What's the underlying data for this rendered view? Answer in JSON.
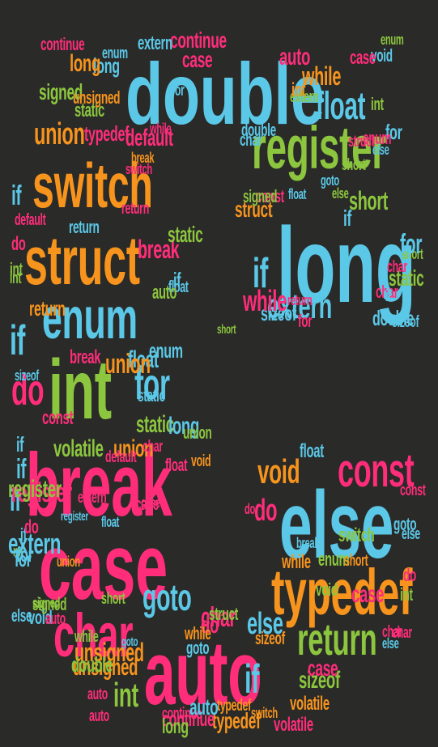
{
  "colors": {
    "background": "#2a2a28",
    "cyan": "#5bc8e8",
    "pink": "#ff2d7a",
    "orange": "#f7941d",
    "green": "#8cc63f"
  },
  "words": [
    {
      "text": "double",
      "color": "cyan"
    },
    {
      "text": "register",
      "color": "green"
    },
    {
      "text": "long",
      "color": "cyan"
    },
    {
      "text": "float",
      "color": "cyan"
    },
    {
      "text": "extern",
      "color": "cyan"
    },
    {
      "text": "short",
      "color": "green"
    },
    {
      "text": "struct",
      "color": "orange"
    },
    {
      "text": "if",
      "color": "cyan"
    },
    {
      "text": "double",
      "color": "cyan"
    },
    {
      "text": "switch",
      "color": "orange"
    },
    {
      "text": "struct",
      "color": "orange"
    },
    {
      "text": "enum",
      "color": "cyan"
    },
    {
      "text": "int",
      "color": "green"
    },
    {
      "text": "break",
      "color": "pink"
    },
    {
      "text": "case",
      "color": "pink"
    },
    {
      "text": "char",
      "color": "pink"
    },
    {
      "text": "auto",
      "color": "pink"
    },
    {
      "text": "else",
      "color": "cyan"
    },
    {
      "text": "const",
      "color": "pink"
    },
    {
      "text": "typedef",
      "color": "orange"
    },
    {
      "text": "return",
      "color": "green"
    },
    {
      "text": "void",
      "color": "orange"
    },
    {
      "text": "union",
      "color": "orange"
    },
    {
      "text": "signed",
      "color": "green"
    },
    {
      "text": "continue",
      "color": "pink"
    },
    {
      "text": "extern",
      "color": "cyan"
    },
    {
      "text": "case",
      "color": "pink"
    },
    {
      "text": "enum",
      "color": "cyan"
    },
    {
      "text": "long",
      "color": "cyan"
    },
    {
      "text": "auto",
      "color": "pink"
    },
    {
      "text": "while",
      "color": "orange"
    },
    {
      "text": "default",
      "color": "pink"
    },
    {
      "text": "static",
      "color": "green"
    },
    {
      "text": "for",
      "color": "cyan"
    },
    {
      "text": "if",
      "color": "cyan"
    },
    {
      "text": "do",
      "color": "pink"
    },
    {
      "text": "float",
      "color": "cyan"
    },
    {
      "text": "for",
      "color": "cyan"
    },
    {
      "text": "static",
      "color": "green"
    },
    {
      "text": "volatile",
      "color": "green"
    },
    {
      "text": "union",
      "color": "orange"
    },
    {
      "text": "if",
      "color": "cyan"
    },
    {
      "text": "do",
      "color": "pink"
    },
    {
      "text": "sizeof",
      "color": "cyan"
    },
    {
      "text": "goto",
      "color": "cyan"
    },
    {
      "text": "short",
      "color": "green"
    },
    {
      "text": "unsigned",
      "color": "orange"
    },
    {
      "text": "int",
      "color": "green"
    },
    {
      "text": "else",
      "color": "cyan"
    },
    {
      "text": "switch",
      "color": "green"
    },
    {
      "text": "sizeof",
      "color": "green"
    },
    {
      "text": "while",
      "color": "orange"
    },
    {
      "text": "enum",
      "color": "green"
    },
    {
      "text": "void",
      "color": "green"
    },
    {
      "text": "do",
      "color": "pink"
    },
    {
      "text": "if",
      "color": "cyan"
    },
    {
      "text": "if",
      "color": "cyan"
    },
    {
      "text": "int",
      "color": "green"
    },
    {
      "text": "float",
      "color": "cyan"
    },
    {
      "text": "typedef",
      "color": "orange"
    },
    {
      "text": "continue",
      "color": "pink"
    },
    {
      "text": "volatile",
      "color": "orange"
    },
    {
      "text": "signed",
      "color": "green"
    },
    {
      "text": "if",
      "color": "cyan"
    },
    {
      "text": "auto",
      "color": "pink"
    },
    {
      "text": "int",
      "color": "green"
    },
    {
      "text": "long",
      "color": "orange"
    },
    {
      "text": "break",
      "color": "orange"
    },
    {
      "text": "default",
      "color": "pink"
    },
    {
      "text": "return",
      "color": "cyan"
    },
    {
      "text": "case",
      "color": "pink"
    },
    {
      "text": "goto",
      "color": "cyan"
    },
    {
      "text": "char",
      "color": "pink"
    },
    {
      "text": "else",
      "color": "cyan"
    },
    {
      "text": "for",
      "color": "cyan"
    },
    {
      "text": "union",
      "color": "orange"
    },
    {
      "text": "break",
      "color": "pink"
    },
    {
      "text": "case",
      "color": "pink"
    },
    {
      "text": "do",
      "color": "pink"
    },
    {
      "text": "const",
      "color": "pink"
    },
    {
      "text": "short",
      "color": "orange"
    },
    {
      "text": "for",
      "color": "cyan"
    },
    {
      "text": "int",
      "color": "green"
    },
    {
      "text": "int",
      "color": "green"
    },
    {
      "text": "if",
      "color": "cyan"
    },
    {
      "text": "short",
      "color": "green"
    },
    {
      "text": "float",
      "color": "cyan"
    },
    {
      "text": "enum",
      "color": "cyan"
    },
    {
      "text": "for",
      "color": "cyan"
    },
    {
      "text": "if",
      "color": "cyan"
    },
    {
      "text": "char",
      "color": "pink"
    },
    {
      "text": "goto",
      "color": "cyan"
    },
    {
      "text": "auto",
      "color": "pink"
    },
    {
      "text": "unsigned",
      "color": "orange"
    },
    {
      "text": "struct",
      "color": "pink"
    },
    {
      "text": "switch",
      "color": "pink"
    },
    {
      "text": "typedef",
      "color": "orange"
    },
    {
      "text": "volatile",
      "color": "pink"
    },
    {
      "text": "case",
      "color": "pink"
    },
    {
      "text": "const",
      "color": "pink"
    },
    {
      "text": "char",
      "color": "pink"
    },
    {
      "text": "sizeof",
      "color": "orange"
    },
    {
      "text": "else",
      "color": "cyan"
    },
    {
      "text": "do",
      "color": "pink"
    },
    {
      "text": "signed",
      "color": "green"
    },
    {
      "text": "return",
      "color": "pink"
    },
    {
      "text": "void",
      "color": "cyan"
    },
    {
      "text": "continue",
      "color": "pink"
    },
    {
      "text": "case",
      "color": "pink"
    },
    {
      "text": "char",
      "color": "pink"
    },
    {
      "text": "switch",
      "color": "orange"
    },
    {
      "text": "auto",
      "color": "cyan"
    },
    {
      "text": "struct",
      "color": "green"
    },
    {
      "text": "extern",
      "color": "pink"
    },
    {
      "text": "register",
      "color": "cyan"
    },
    {
      "text": "float",
      "color": "cyan"
    },
    {
      "text": "while",
      "color": "pink"
    },
    {
      "text": "short",
      "color": "green"
    },
    {
      "text": "else",
      "color": "green"
    },
    {
      "text": "static",
      "color": "green"
    },
    {
      "text": "sizeof",
      "color": "cyan"
    },
    {
      "text": "else",
      "color": "cyan"
    },
    {
      "text": "if",
      "color": "cyan"
    },
    {
      "text": "goto",
      "color": "cyan"
    },
    {
      "text": "void",
      "color": "orange"
    },
    {
      "text": "float",
      "color": "pink"
    },
    {
      "text": "double",
      "color": "cyan"
    },
    {
      "text": "enum",
      "color": "pink"
    },
    {
      "text": "char",
      "color": "pink"
    },
    {
      "text": "break",
      "color": "cyan"
    },
    {
      "text": "else",
      "color": "cyan"
    },
    {
      "text": "extern",
      "color": "cyan"
    },
    {
      "text": "auto",
      "color": "green"
    },
    {
      "text": "return",
      "color": "pink"
    },
    {
      "text": "for",
      "color": "pink"
    },
    {
      "text": "sizeof",
      "color": "cyan"
    },
    {
      "text": "if",
      "color": "cyan"
    },
    {
      "text": "register",
      "color": "pink"
    },
    {
      "text": "continue",
      "color": "pink"
    },
    {
      "text": "long",
      "color": "green"
    },
    {
      "text": "unsigned",
      "color": "orange"
    },
    {
      "text": "while",
      "color": "green"
    },
    {
      "text": "default",
      "color": "pink"
    },
    {
      "text": "typedef",
      "color": "pink"
    },
    {
      "text": "int",
      "color": "green"
    },
    {
      "text": "break",
      "color": "pink"
    },
    {
      "text": "union",
      "color": "orange"
    },
    {
      "text": "const",
      "color": "pink"
    },
    {
      "text": "float",
      "color": "cyan"
    },
    {
      "text": "static",
      "color": "green"
    },
    {
      "text": "long",
      "color": "cyan"
    },
    {
      "text": "void",
      "color": "cyan"
    },
    {
      "text": "char",
      "color": "pink"
    },
    {
      "text": "auto",
      "color": "pink"
    },
    {
      "text": "case",
      "color": "pink"
    },
    {
      "text": "double",
      "color": "green"
    },
    {
      "text": "char",
      "color": "cyan"
    },
    {
      "text": "goto",
      "color": "cyan"
    },
    {
      "text": "do",
      "color": "pink"
    },
    {
      "text": "while",
      "color": "orange"
    },
    {
      "text": "short",
      "color": "green"
    },
    {
      "text": "if",
      "color": "cyan"
    },
    {
      "text": "register",
      "color": "green"
    },
    {
      "text": "extern",
      "color": "green"
    },
    {
      "text": "enum",
      "color": "green"
    },
    {
      "text": "return",
      "color": "orange"
    },
    {
      "text": "int",
      "color": "orange"
    },
    {
      "text": "signed",
      "color": "green"
    },
    {
      "text": "union",
      "color": "green"
    },
    {
      "text": "for",
      "color": "cyan"
    },
    {
      "text": "if",
      "color": "cyan"
    },
    {
      "text": "while",
      "color": "pink"
    },
    {
      "text": "do",
      "color": "pink"
    },
    {
      "text": "static",
      "color": "cyan"
    }
  ]
}
